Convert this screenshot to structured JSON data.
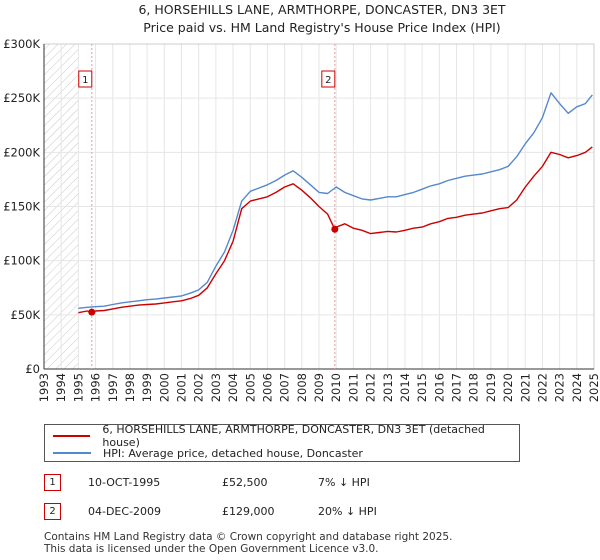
{
  "chart_data": {
    "type": "line",
    "title": "6, HORSEHILLS LANE, ARMTHORPE, DONCASTER, DN3 3ET",
    "subtitle": "Price paid vs. HM Land Registry's House Price Index (HPI)",
    "xlim": [
      1993,
      2025
    ],
    "ylim": [
      0,
      300000
    ],
    "x_ticks": [
      "1993",
      "1994",
      "1995",
      "1996",
      "1997",
      "1998",
      "1999",
      "2000",
      "2001",
      "2002",
      "2003",
      "2004",
      "2005",
      "2006",
      "2007",
      "2008",
      "2009",
      "2010",
      "2011",
      "2012",
      "2013",
      "2014",
      "2015",
      "2016",
      "2017",
      "2018",
      "2019",
      "2020",
      "2021",
      "2022",
      "2023",
      "2024",
      "2025"
    ],
    "y_ticks": [
      {
        "value": 0,
        "label": "£0"
      },
      {
        "value": 50000,
        "label": "£50K"
      },
      {
        "value": 100000,
        "label": "£100K"
      },
      {
        "value": 150000,
        "label": "£150K"
      },
      {
        "value": 200000,
        "label": "£200K"
      },
      {
        "value": 250000,
        "label": "£250K"
      },
      {
        "value": 300000,
        "label": "£300K"
      }
    ],
    "hatched_until": 1995.0,
    "series": [
      {
        "name": "6, HORSEHILLS LANE, ARMTHORPE, DONCASTER, DN3 3ET (detached house)",
        "color": "#cc0000",
        "x": [
          1995.0,
          1995.5,
          1995.78,
          1996.0,
          1996.5,
          1997.0,
          1997.5,
          1998.0,
          1998.5,
          1999.0,
          1999.5,
          2000.0,
          2000.5,
          2001.0,
          2001.5,
          2002.0,
          2002.5,
          2003.0,
          2003.5,
          2004.0,
          2004.5,
          2005.0,
          2005.5,
          2006.0,
          2006.5,
          2007.0,
          2007.5,
          2008.0,
          2008.5,
          2009.0,
          2009.5,
          2009.92,
          2010.0,
          2010.5,
          2011.0,
          2011.5,
          2012.0,
          2012.5,
          2013.0,
          2013.5,
          2014.0,
          2014.5,
          2015.0,
          2015.5,
          2016.0,
          2016.5,
          2017.0,
          2017.5,
          2018.0,
          2018.5,
          2019.0,
          2019.5,
          2020.0,
          2020.5,
          2021.0,
          2021.5,
          2022.0,
          2022.5,
          2023.0,
          2023.5,
          2024.0,
          2024.5,
          2024.9
        ],
        "y": [
          52000,
          53500,
          52500,
          53500,
          54000,
          55500,
          57000,
          58000,
          59000,
          59500,
          60000,
          61000,
          62000,
          63000,
          65000,
          68000,
          75000,
          88000,
          100000,
          118000,
          148000,
          155000,
          157000,
          159000,
          163000,
          168000,
          171000,
          165000,
          158000,
          150000,
          143000,
          129000,
          131000,
          134000,
          130000,
          128000,
          125000,
          126000,
          127000,
          126500,
          128000,
          130000,
          131000,
          134000,
          136000,
          139000,
          140000,
          142000,
          143000,
          144000,
          146000,
          148000,
          149000,
          156000,
          168000,
          178000,
          187000,
          200000,
          198000,
          195000,
          197000,
          200000,
          205000
        ]
      },
      {
        "name": "HPI: Average price, detached house, Doncaster",
        "color": "#5588cc",
        "x": [
          1995.0,
          1995.5,
          1996.0,
          1996.5,
          1997.0,
          1997.5,
          1998.0,
          1998.5,
          1999.0,
          1999.5,
          2000.0,
          2000.5,
          2001.0,
          2001.5,
          2002.0,
          2002.5,
          2003.0,
          2003.5,
          2004.0,
          2004.5,
          2005.0,
          2005.5,
          2006.0,
          2006.5,
          2007.0,
          2007.5,
          2008.0,
          2008.5,
          2009.0,
          2009.5,
          2010.0,
          2010.5,
          2011.0,
          2011.5,
          2012.0,
          2012.5,
          2013.0,
          2013.5,
          2014.0,
          2014.5,
          2015.0,
          2015.5,
          2016.0,
          2016.5,
          2017.0,
          2017.5,
          2018.0,
          2018.5,
          2019.0,
          2019.5,
          2020.0,
          2020.5,
          2021.0,
          2021.5,
          2022.0,
          2022.5,
          2023.0,
          2023.5,
          2024.0,
          2024.5,
          2024.9
        ],
        "y": [
          56000,
          57000,
          57500,
          58000,
          59500,
          61000,
          62000,
          63000,
          64000,
          64500,
          65500,
          66500,
          67500,
          70000,
          73000,
          80000,
          95000,
          108000,
          128000,
          155000,
          164000,
          167000,
          170000,
          174000,
          179000,
          183000,
          177000,
          170000,
          163000,
          162000,
          168000,
          163000,
          160000,
          157000,
          156000,
          157500,
          159000,
          159000,
          161000,
          163000,
          166000,
          169000,
          171000,
          174000,
          176000,
          178000,
          179000,
          180000,
          182000,
          184000,
          187000,
          196000,
          208000,
          218000,
          232000,
          255000,
          245000,
          236000,
          242000,
          245000,
          253000
        ]
      }
    ],
    "transactions": [
      {
        "id": "1",
        "x": 1995.78,
        "y": 52500
      },
      {
        "id": "2",
        "x": 2009.92,
        "y": 129000
      }
    ]
  },
  "legend": {
    "red_label": "6, HORSEHILLS LANE, ARMTHORPE, DONCASTER, DN3 3ET (detached house)",
    "blue_label": "HPI: Average price, detached house, Doncaster"
  },
  "transactions_table": [
    {
      "id": "1",
      "date": "10-OCT-1995",
      "price": "£52,500",
      "hpi": "7% ↓ HPI"
    },
    {
      "id": "2",
      "date": "04-DEC-2009",
      "price": "£129,000",
      "hpi": "20% ↓ HPI"
    }
  ],
  "footer": {
    "line1": "Contains HM Land Registry data © Crown copyright and database right 2025.",
    "line2": "This data is licensed under the Open Government Licence v3.0."
  }
}
